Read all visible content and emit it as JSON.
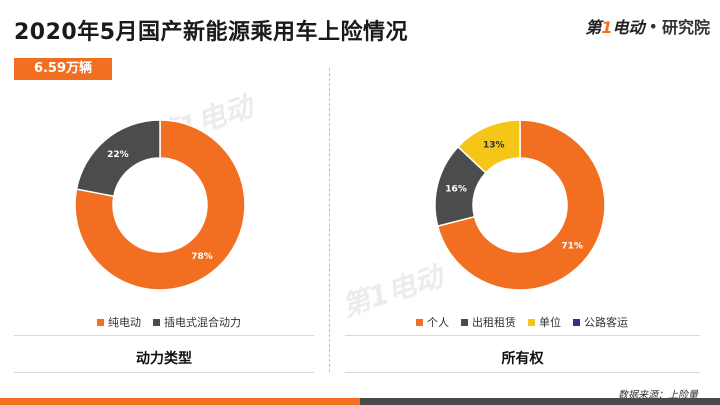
{
  "header": {
    "title": "2020年5月国产新能源乘用车上险情况",
    "brand_main_1": "第",
    "brand_main_2": "1",
    "brand_main_3": "电动",
    "brand_dot": "•",
    "brand_sub": "研究院"
  },
  "badge": "6.59万辆",
  "watermark_text": "第1电动",
  "source": "数据来源：上险量",
  "chart_data": [
    {
      "type": "pie",
      "variant": "donut",
      "title": "动力类型",
      "categories": [
        "纯电动",
        "插电式混合动力"
      ],
      "values": [
        78,
        22
      ],
      "labels": [
        "78%",
        "22%"
      ],
      "colors": [
        "#f26f21",
        "#4b4c4e"
      ],
      "legend": "bottom"
    },
    {
      "type": "pie",
      "variant": "donut",
      "title": "所有权",
      "categories": [
        "个人",
        "出租租赁",
        "单位",
        "公路客运"
      ],
      "values": [
        71,
        16,
        13,
        0
      ],
      "labels": [
        "71%",
        "16%",
        "13%",
        ""
      ],
      "colors": [
        "#f26f21",
        "#4b4c4e",
        "#f5c518",
        "#2e3192"
      ],
      "legend": "bottom"
    }
  ]
}
